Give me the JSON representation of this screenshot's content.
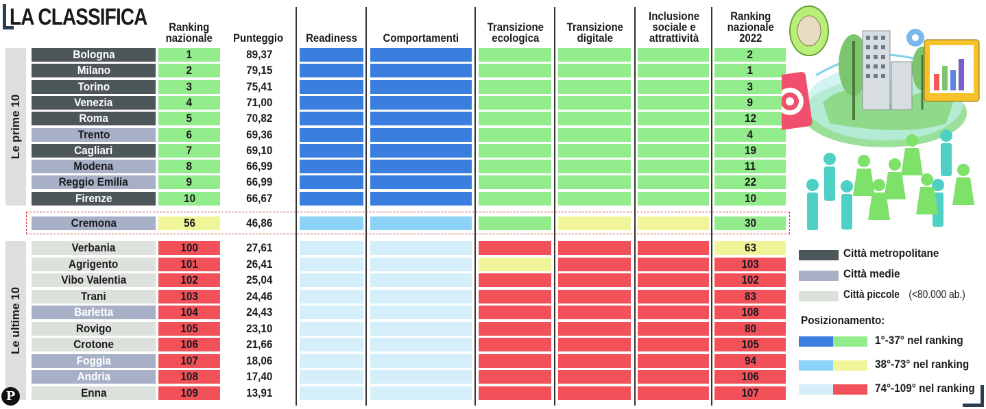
{
  "title": "LA CLASSIFICA",
  "headers": {
    "ranking": "Ranking\nnazionale",
    "punteggio": "Punteggio",
    "readiness": "Readiness",
    "comportamenti": "Comportamenti",
    "ecologica": "Transizione\necologica",
    "digitale": "Transizione\ndigitale",
    "inclusione": "Inclusione\nsociale e\nattrattività",
    "ranking2022": "Ranking\nnazionale\n2022"
  },
  "side_labels": {
    "top": "Le prime 10",
    "bottom": "Le ultime 10"
  },
  "colors": {
    "metro": "#4d5659",
    "media": "#a8b0c8",
    "piccola": "#dde1dc",
    "blue_top": "#3a7fe0",
    "blue_mid": "#8dd2f7",
    "blue_low": "#d4effa",
    "green": "#93ec8c",
    "yellow": "#f0f59a",
    "red": "#f2515a"
  },
  "rows": [
    {
      "city": "Bologna",
      "type": "metro",
      "rank": "1",
      "score": "89,37",
      "readiness": "top",
      "comportamenti": "top",
      "ecologica": "green",
      "digitale": "green",
      "inclusione": "green",
      "rank2022": "2",
      "rank2022_color": "green"
    },
    {
      "city": "Milano",
      "type": "metro",
      "rank": "2",
      "score": "79,15",
      "readiness": "top",
      "comportamenti": "top",
      "ecologica": "green",
      "digitale": "green",
      "inclusione": "green",
      "rank2022": "1",
      "rank2022_color": "green"
    },
    {
      "city": "Torino",
      "type": "metro",
      "rank": "3",
      "score": "75,41",
      "readiness": "top",
      "comportamenti": "top",
      "ecologica": "green",
      "digitale": "green",
      "inclusione": "green",
      "rank2022": "3",
      "rank2022_color": "green"
    },
    {
      "city": "Venezia",
      "type": "metro",
      "rank": "4",
      "score": "71,00",
      "readiness": "top",
      "comportamenti": "top",
      "ecologica": "green",
      "digitale": "green",
      "inclusione": "green",
      "rank2022": "9",
      "rank2022_color": "green"
    },
    {
      "city": "Roma",
      "type": "metro",
      "rank": "5",
      "score": "70,82",
      "readiness": "top",
      "comportamenti": "top",
      "ecologica": "green",
      "digitale": "green",
      "inclusione": "green",
      "rank2022": "12",
      "rank2022_color": "green"
    },
    {
      "city": "Trento",
      "type": "media",
      "rank": "6",
      "score": "69,36",
      "readiness": "top",
      "comportamenti": "top",
      "ecologica": "green",
      "digitale": "green",
      "inclusione": "green",
      "rank2022": "4",
      "rank2022_color": "green"
    },
    {
      "city": "Cagliari",
      "type": "metro",
      "rank": "7",
      "score": "69,10",
      "readiness": "top",
      "comportamenti": "top",
      "ecologica": "green",
      "digitale": "green",
      "inclusione": "green",
      "rank2022": "19",
      "rank2022_color": "green"
    },
    {
      "city": "Modena",
      "type": "media",
      "rank": "8",
      "score": "66,99",
      "readiness": "top",
      "comportamenti": "top",
      "ecologica": "green",
      "digitale": "green",
      "inclusione": "green",
      "rank2022": "11",
      "rank2022_color": "green"
    },
    {
      "city": "Reggio Emilia",
      "type": "media",
      "rank": "9",
      "score": "66,99",
      "readiness": "top",
      "comportamenti": "top",
      "ecologica": "green",
      "digitale": "green",
      "inclusione": "green",
      "rank2022": "22",
      "rank2022_color": "green"
    },
    {
      "city": "Firenze",
      "type": "metro",
      "rank": "10",
      "score": "66,67",
      "readiness": "top",
      "comportamenti": "top",
      "ecologica": "green",
      "digitale": "green",
      "inclusione": "green",
      "rank2022": "10",
      "rank2022_color": "green"
    },
    {
      "city": "Cremona",
      "type": "media",
      "rank": "56",
      "score": "46,86",
      "readiness": "mid",
      "comportamenti": "mid",
      "ecologica": "green",
      "digitale": "yellow",
      "inclusione": "yellow",
      "rank2022": "30",
      "rank2022_color": "green",
      "rank_color": "yellow"
    },
    {
      "city": "Verbania",
      "type": "piccola",
      "rank": "100",
      "score": "27,61",
      "readiness": "low",
      "comportamenti": "low",
      "ecologica": "red",
      "digitale": "red",
      "inclusione": "red",
      "rank2022": "63",
      "rank2022_color": "yellow"
    },
    {
      "city": "Agrigento",
      "type": "piccola",
      "rank": "101",
      "score": "26,41",
      "readiness": "low",
      "comportamenti": "low",
      "ecologica": "yellow",
      "digitale": "red",
      "inclusione": "red",
      "rank2022": "103",
      "rank2022_color": "red"
    },
    {
      "city": "Vibo Valentia",
      "type": "piccola",
      "rank": "102",
      "score": "25,04",
      "readiness": "low",
      "comportamenti": "low",
      "ecologica": "red",
      "digitale": "red",
      "inclusione": "red",
      "rank2022": "102",
      "rank2022_color": "red"
    },
    {
      "city": "Trani",
      "type": "piccola",
      "rank": "103",
      "score": "24,46",
      "readiness": "low",
      "comportamenti": "low",
      "ecologica": "red",
      "digitale": "red",
      "inclusione": "red",
      "rank2022": "83",
      "rank2022_color": "red"
    },
    {
      "city": "Barletta",
      "type": "media",
      "rank": "104",
      "score": "24,43",
      "readiness": "low",
      "comportamenti": "low",
      "ecologica": "red",
      "digitale": "red",
      "inclusione": "red",
      "rank2022": "108",
      "rank2022_color": "red"
    },
    {
      "city": "Rovigo",
      "type": "piccola",
      "rank": "105",
      "score": "23,10",
      "readiness": "low",
      "comportamenti": "low",
      "ecologica": "red",
      "digitale": "red",
      "inclusione": "red",
      "rank2022": "80",
      "rank2022_color": "red"
    },
    {
      "city": "Crotone",
      "type": "piccola",
      "rank": "106",
      "score": "21,66",
      "readiness": "low",
      "comportamenti": "low",
      "ecologica": "red",
      "digitale": "red",
      "inclusione": "red",
      "rank2022": "105",
      "rank2022_color": "red"
    },
    {
      "city": "Foggia",
      "type": "media",
      "rank": "107",
      "score": "18,06",
      "readiness": "low",
      "comportamenti": "low",
      "ecologica": "red",
      "digitale": "red",
      "inclusione": "red",
      "rank2022": "94",
      "rank2022_color": "red"
    },
    {
      "city": "Andria",
      "type": "media",
      "rank": "108",
      "score": "17,40",
      "readiness": "low",
      "comportamenti": "low",
      "ecologica": "red",
      "digitale": "red",
      "inclusione": "red",
      "rank2022": "106",
      "rank2022_color": "red"
    },
    {
      "city": "Enna",
      "type": "piccola",
      "rank": "109",
      "score": "13,91",
      "readiness": "low",
      "comportamenti": "low",
      "ecologica": "red",
      "digitale": "red",
      "inclusione": "red",
      "rank2022": "107",
      "rank2022_color": "red"
    }
  ],
  "legend": {
    "metro": "Città metropolitane",
    "media": "Città medie",
    "piccola": "Città piccole",
    "piccola_note": "(<80.000 ab.)",
    "title": "Posizionamento:",
    "pos1": "1°-37° nel ranking",
    "pos2": "38°-73° nel ranking",
    "pos3": "74°-109° nel ranking"
  },
  "logo": "P"
}
